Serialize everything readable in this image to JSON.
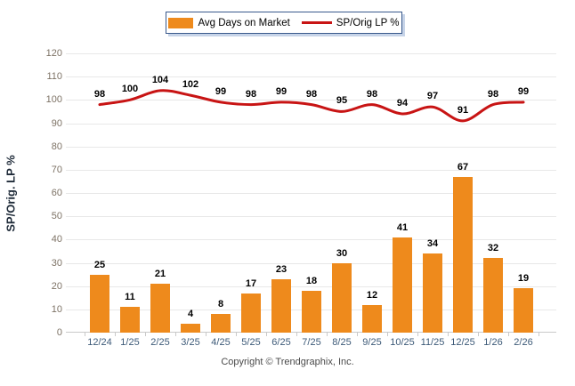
{
  "legend": {
    "bar_label": "Avg Days on Market",
    "line_label": "SP/Orig LP %"
  },
  "y_axis": {
    "title": "SP/Orig. LP %"
  },
  "footer": {
    "copyright": "Copyright © Trendgraphix, Inc."
  },
  "colors": {
    "bar": "#ee8a1c",
    "line": "#c81414",
    "grid": "#e8e8e8",
    "axis": "#c9c9c9",
    "tick": "#c9c9c9",
    "x_label": "#3d5a78",
    "y_label": "#7d7265",
    "value_label": "#000000",
    "legend_border": "#3a5a8c",
    "legend_shadow": "#c7d4e8",
    "y_title": "#1e2a38",
    "copyright": "#4a4a4a"
  },
  "chart_data": {
    "type": "bar",
    "categories": [
      "12/24",
      "1/25",
      "2/25",
      "3/25",
      "4/25",
      "5/25",
      "6/25",
      "7/25",
      "8/25",
      "9/25",
      "10/25",
      "11/25",
      "12/25",
      "1/26",
      "2/26"
    ],
    "series": [
      {
        "name": "Avg Days on Market",
        "type": "bar",
        "values": [
          25,
          11,
          21,
          4,
          8,
          17,
          23,
          18,
          30,
          12,
          41,
          34,
          67,
          32,
          19
        ]
      },
      {
        "name": "SP/Orig LP %",
        "type": "line",
        "values": [
          98,
          100,
          104,
          102,
          99,
          98,
          99,
          98,
          95,
          98,
          94,
          97,
          91,
          98,
          99
        ]
      }
    ],
    "title": "",
    "xlabel": "",
    "ylabel": "SP/Orig. LP %",
    "ylim": [
      0,
      120
    ],
    "yticks": [
      0,
      10,
      20,
      30,
      40,
      50,
      60,
      70,
      80,
      90,
      100,
      110,
      120
    ],
    "grid": true,
    "legend_position": "top-center",
    "data_labels": true
  }
}
